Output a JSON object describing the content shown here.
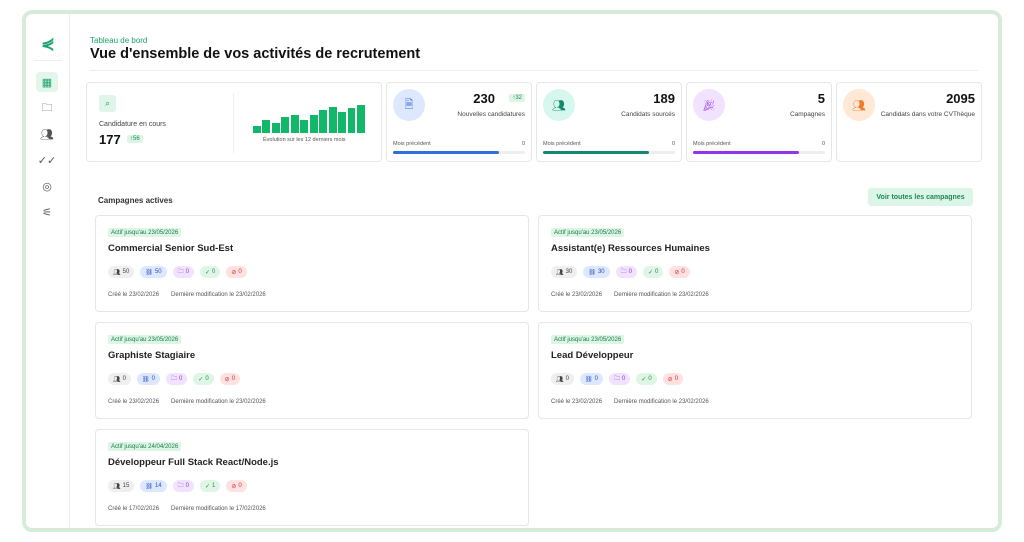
{
  "header": {
    "breadcrumb": "Tableau de bord",
    "title": "Vue d'ensemble de vos activités de recrutement"
  },
  "sidebar": {
    "items": [
      {
        "icon": "dashboard-icon",
        "active": true
      },
      {
        "icon": "folder-icon"
      },
      {
        "icon": "users-icon"
      },
      {
        "icon": "double-check-icon"
      },
      {
        "icon": "target-icon"
      },
      {
        "icon": "sliders-icon"
      }
    ]
  },
  "stats": {
    "current": {
      "label": "Candidature en cours",
      "value": "177",
      "delta": "↑56",
      "chart_label": "Évolution sur les 12 derniers mois",
      "bars": [
        4,
        8,
        6,
        10,
        11,
        8,
        11,
        14,
        16,
        13,
        15,
        17
      ]
    },
    "cards": [
      {
        "value": "230",
        "delta": "↑32",
        "label": "Nouvelles candidatures",
        "prev_label": "Mois précédent",
        "prev_value": "0",
        "progress": 0.8,
        "color": "#2f6fe0",
        "bg": "#dde8ff",
        "icon": "document-icon"
      },
      {
        "value": "189",
        "label": "Candidats sourcés",
        "prev_label": "Mois précédent",
        "prev_value": "0",
        "progress": 0.8,
        "color": "#138a6e",
        "bg": "#d6f7ee",
        "icon": "users-icon"
      },
      {
        "value": "5",
        "label": "Campagnes",
        "prev_label": "Mois précédent",
        "prev_value": "0",
        "progress": 0.8,
        "color": "#9333ea",
        "bg": "#f1e3ff",
        "icon": "party-icon"
      },
      {
        "value": "2095",
        "label": "Candidats dans votre CVThèque",
        "color": "#f07a2a",
        "bg": "#ffe9d6",
        "icon": "users-icon"
      }
    ]
  },
  "campaigns": {
    "title": "Campagnes actives",
    "view_all": "Voir toutes les campagnes",
    "items": [
      {
        "status": "Actif jusqu'au 23/05/2026",
        "name": "Commercial Senior Sud-Est",
        "counts": [
          "50",
          "50",
          "0",
          "0",
          "0"
        ],
        "created": "Créé le 23/02/2026",
        "modified": "Dernière modification le 23/02/2026"
      },
      {
        "status": "Actif jusqu'au 23/05/2026",
        "name": "Assistant(e) Ressources Humaines",
        "counts": [
          "30",
          "30",
          "0",
          "0",
          "0"
        ],
        "created": "Créé le 23/02/2026",
        "modified": "Dernière modification le 23/02/2026"
      },
      {
        "status": "Actif jusqu'au 23/05/2026",
        "name": "Graphiste Stagiaire",
        "counts": [
          "0",
          "0",
          "0",
          "0",
          "0"
        ],
        "created": "Créé le 23/02/2026",
        "modified": "Dernière modification le 23/02/2026"
      },
      {
        "status": "Actif jusqu'au 23/05/2026",
        "name": "Lead Développeur",
        "counts": [
          "0",
          "0",
          "0",
          "0",
          "0"
        ],
        "created": "Créé le 23/02/2026",
        "modified": "Dernière modification le 23/02/2026"
      },
      {
        "status": "Actif jusqu'au 24/04/2026",
        "name": "Développeur Full Stack React/Node.js",
        "counts": [
          "15",
          "14",
          "0",
          "1",
          "0"
        ],
        "created": "Créé le 17/02/2026",
        "modified": "Dernière modification le 17/02/2026"
      }
    ]
  }
}
